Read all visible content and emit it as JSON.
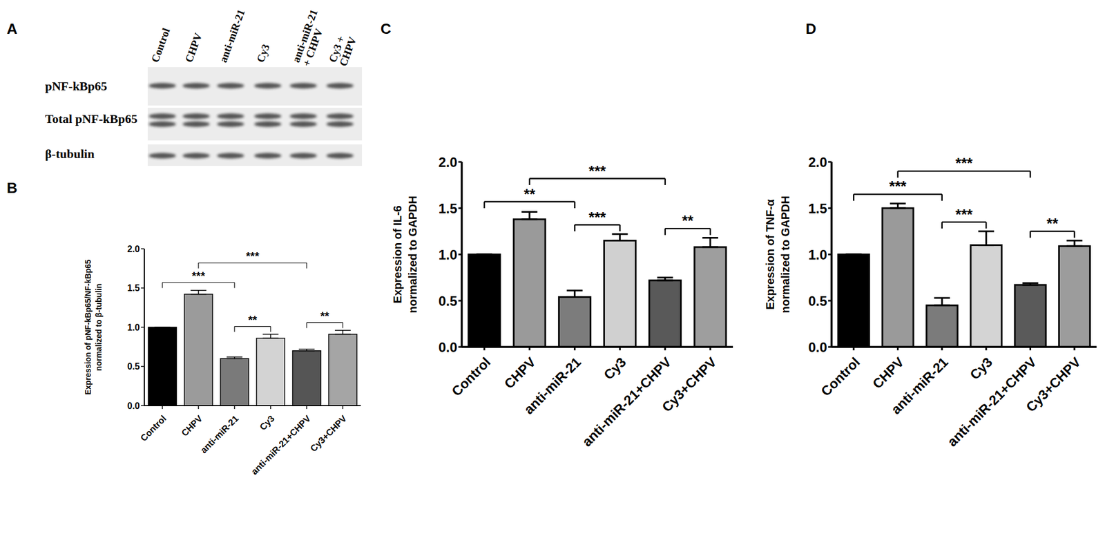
{
  "blot": {
    "panel": "A",
    "lanes": [
      "Control",
      "CHPV",
      "anti-miR-21",
      "Cy3",
      "anti-miR-21\n+ CHPV",
      "Cy3 +\nCHPV"
    ],
    "rows": [
      "pNF-kBp65",
      "Total pNF-kBp65",
      "β-tubulin"
    ]
  },
  "chart_data": [
    {
      "panel": "B",
      "type": "bar",
      "ylabel": [
        "Expression of pNF-kBp65/NF-kBp65",
        "normalized to β-tubulin"
      ],
      "categories": [
        "Control",
        "CHPV",
        "anti-miR-21",
        "Cy3",
        "anti-miR-21+CHPV",
        "Cy3+CHPV"
      ],
      "values": [
        1.0,
        1.42,
        0.6,
        0.86,
        0.7,
        0.91
      ],
      "errors": [
        0,
        0.05,
        0.02,
        0.05,
        0.02,
        0.05
      ],
      "colors": [
        "#000000",
        "#9b9b9b",
        "#7a7a7a",
        "#d3d3d3",
        "#555555",
        "#a5a5a5"
      ],
      "ylim": [
        0,
        2
      ],
      "yticks": [
        {
          "value": 0,
          "label": "0.0"
        },
        {
          "value": 0.5,
          "label": "0.5"
        },
        {
          "value": 1,
          "label": "1.0"
        },
        {
          "value": 1.5,
          "label": "1.5"
        },
        {
          "value": 2,
          "label": "2.0"
        }
      ],
      "grid": false,
      "annotations": [
        {
          "from": "Control",
          "to": "anti-miR-21",
          "label": "***"
        },
        {
          "from": "CHPV",
          "to": "anti-miR-21+CHPV",
          "label": "***"
        },
        {
          "from": "anti-miR-21",
          "to": "Cy3",
          "label": "**"
        },
        {
          "from": "anti-miR-21+CHPV",
          "to": "Cy3+CHPV",
          "label": "**"
        }
      ]
    },
    {
      "panel": "C",
      "type": "bar",
      "ylabel": [
        "Expression of IL-6",
        "normalized to GAPDH"
      ],
      "categories": [
        "Control",
        "CHPV",
        "anti-miR-21",
        "Cy3",
        "anti-miR-21+CHPV",
        "Cy3+CHPV"
      ],
      "values": [
        1.0,
        1.38,
        0.54,
        1.15,
        0.72,
        1.08
      ],
      "errors": [
        0,
        0.08,
        0.07,
        0.07,
        0.03,
        0.1
      ],
      "colors": [
        "#000000",
        "#9a9a9a",
        "#7c7c7c",
        "#d0d0d0",
        "#595959",
        "#9e9e9e"
      ],
      "ylim": [
        0,
        2
      ],
      "yticks": [
        {
          "value": 0,
          "label": "0.0"
        },
        {
          "value": 0.5,
          "label": "0.5"
        },
        {
          "value": 1,
          "label": "1.0"
        },
        {
          "value": 1.5,
          "label": "1.5"
        },
        {
          "value": 2,
          "label": "2.0"
        }
      ],
      "grid": false,
      "annotations": [
        {
          "from": "Control",
          "to": "anti-miR-21",
          "label": "**"
        },
        {
          "from": "CHPV",
          "to": "anti-miR-21+CHPV",
          "label": "***"
        },
        {
          "from": "anti-miR-21",
          "to": "Cy3",
          "label": "***"
        },
        {
          "from": "anti-miR-21+CHPV",
          "to": "Cy3+CHPV",
          "label": "**"
        }
      ]
    },
    {
      "panel": "D",
      "type": "bar",
      "ylabel": [
        "Expression of TNF-α",
        "normalized to GAPDH"
      ],
      "categories": [
        "Control",
        "CHPV",
        "anti-miR-21",
        "Cy3",
        "anti-miR-21+CHPV",
        "Cy3+CHPV"
      ],
      "values": [
        1.0,
        1.5,
        0.45,
        1.1,
        0.67,
        1.09
      ],
      "errors": [
        0,
        0.05,
        0.08,
        0.15,
        0.02,
        0.06
      ],
      "colors": [
        "#000000",
        "#9a9a9a",
        "#7b7b7b",
        "#d4d4d4",
        "#5a5a5a",
        "#9c9c9c"
      ],
      "ylim": [
        0,
        2
      ],
      "yticks": [
        {
          "value": 0,
          "label": "0.0"
        },
        {
          "value": 0.5,
          "label": "0.5"
        },
        {
          "value": 1,
          "label": "1.0"
        },
        {
          "value": 1.5,
          "label": "1.5"
        },
        {
          "value": 2,
          "label": "2.0"
        }
      ],
      "grid": false,
      "annotations": [
        {
          "from": "Control",
          "to": "anti-miR-21",
          "label": "***"
        },
        {
          "from": "CHPV",
          "to": "anti-miR-21+CHPV",
          "label": "***"
        },
        {
          "from": "anti-miR-21",
          "to": "Cy3",
          "label": "***"
        },
        {
          "from": "anti-miR-21+CHPV",
          "to": "Cy3+CHPV",
          "label": "**"
        }
      ]
    }
  ]
}
